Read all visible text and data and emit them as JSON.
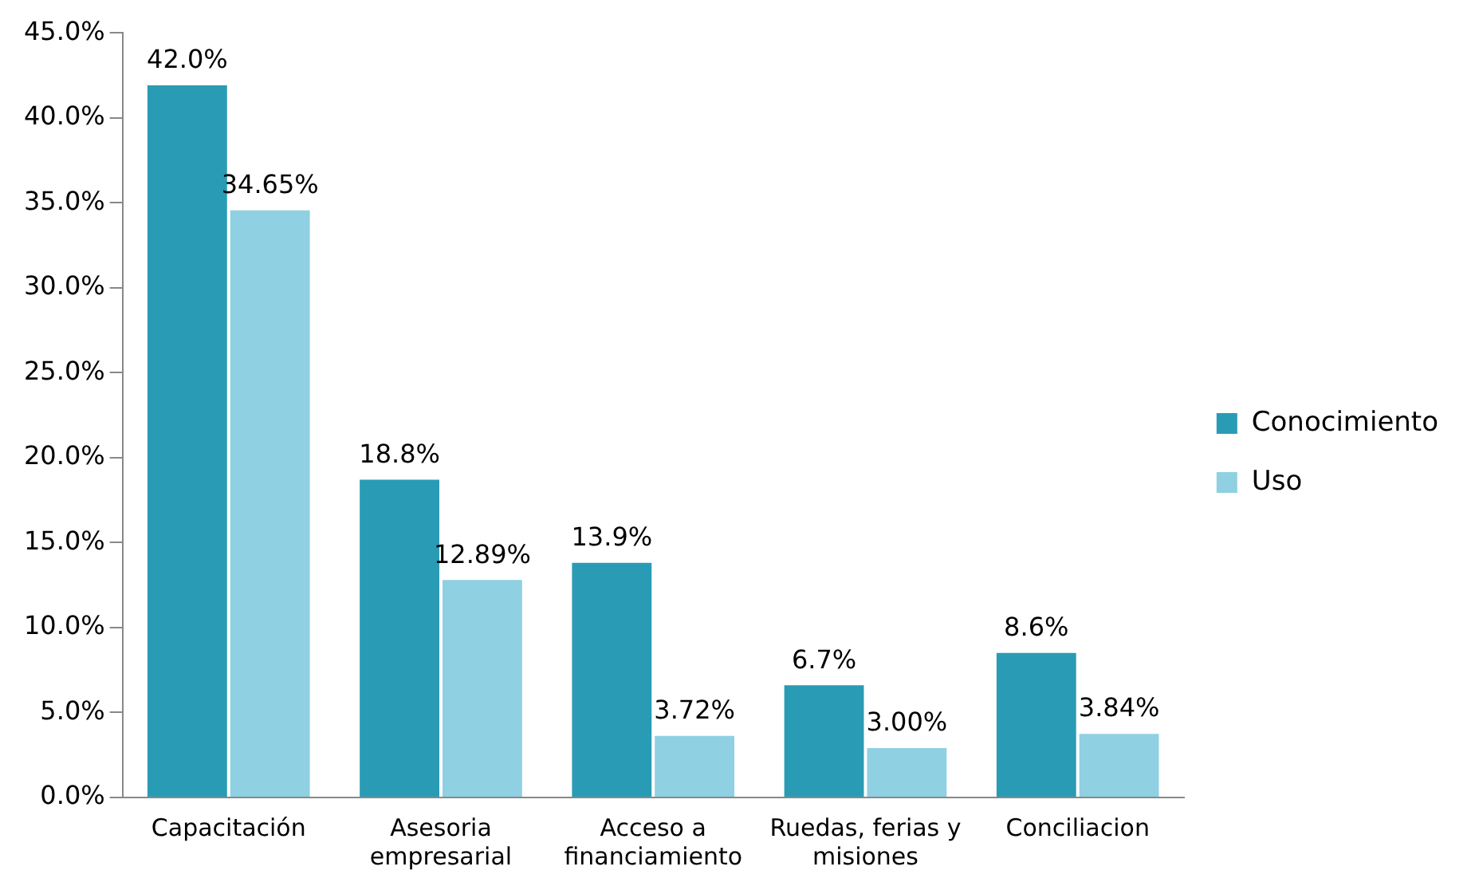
{
  "chart_data": {
    "type": "bar",
    "categories": [
      "Capacitación",
      "Asesoria empresarial",
      "Acceso a financiamiento",
      "Ruedas, ferias y misiones",
      "Conciliacion"
    ],
    "series": [
      {
        "name": "Conocimiento",
        "color": "#2a9bb5",
        "values": [
          42.0,
          18.8,
          13.9,
          6.7,
          8.6
        ],
        "value_labels": [
          "42.0%",
          "18.8%",
          "13.9%",
          "6.7%",
          "8.6%"
        ]
      },
      {
        "name": "Uso",
        "color": "#8fd0e3",
        "values": [
          34.65,
          12.89,
          3.72,
          3.0,
          3.84
        ],
        "value_labels": [
          "34.65%",
          "12.89%",
          "3.72%",
          "3.00%",
          "3.84%"
        ]
      }
    ],
    "ylim": [
      0,
      45
    ],
    "yticks": [
      {
        "value": 0,
        "label": "0.0%"
      },
      {
        "value": 5,
        "label": "5.0%"
      },
      {
        "value": 10,
        "label": "10.0%"
      },
      {
        "value": 15,
        "label": "15.0%"
      },
      {
        "value": 20,
        "label": "20.0%"
      },
      {
        "value": 25,
        "label": "25.0%"
      },
      {
        "value": 30,
        "label": "30.0%"
      },
      {
        "value": 35,
        "label": "35.0%"
      },
      {
        "value": 40,
        "label": "40.0%"
      },
      {
        "value": 45,
        "label": "45.0%"
      }
    ],
    "grid": false,
    "legend": "right"
  }
}
